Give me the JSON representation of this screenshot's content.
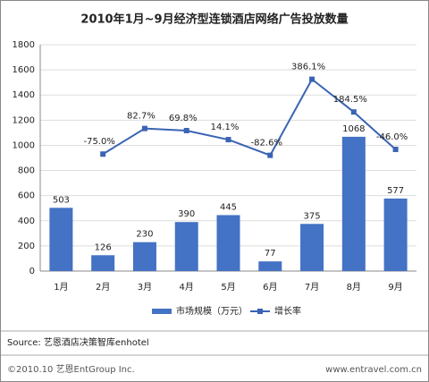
{
  "chart_data": {
    "type": "combo",
    "title": "2010年1月~9月经济型连锁酒店网络广告投放数量",
    "categories": [
      "1月",
      "2月",
      "3月",
      "4月",
      "5月",
      "6月",
      "7月",
      "8月",
      "9月"
    ],
    "series": [
      {
        "name": "市场规模（万元）",
        "type": "bar",
        "color": "#4472c4",
        "values": [
          503,
          126,
          230,
          390,
          445,
          77,
          375,
          1068,
          577
        ]
      },
      {
        "name": "增长率",
        "type": "line",
        "color": "#3a64b3",
        "axis": "y2",
        "values": [
          null,
          -75.0,
          82.7,
          69.8,
          14.1,
          -82.6,
          386.1,
          184.5,
          -46.0
        ],
        "value_labels": [
          null,
          "-75.0%",
          "82.7%",
          "69.8%",
          "14.1%",
          "-82.6%",
          "386.1%",
          "184.5%",
          "-46.0%"
        ]
      }
    ],
    "ylim": [
      0,
      1800
    ],
    "yticks": [
      0,
      200,
      400,
      600,
      800,
      1000,
      1200,
      1400,
      1600,
      1800
    ],
    "y2lim": [
      -796,
      599
    ],
    "grid": true,
    "legend": "bottom",
    "source": "Source: 艺恩酒店决策智库enhotel",
    "footer_left": "©2010.10 艺恩EntGroup Inc.",
    "footer_right": "www.entravel.com.cn"
  }
}
